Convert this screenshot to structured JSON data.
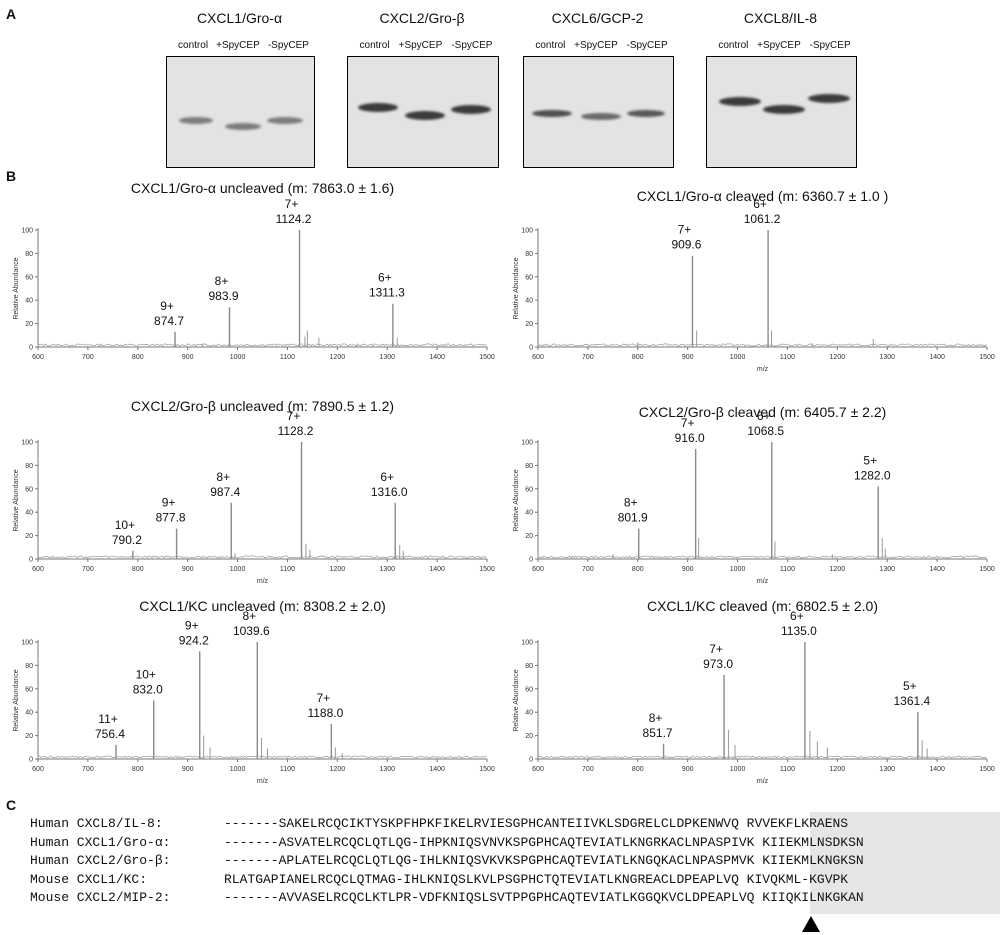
{
  "panels": {
    "a": "A",
    "b": "B",
    "c": "C"
  },
  "gels": [
    {
      "title": "CXCL1/Gro-α",
      "lanes": [
        "control",
        "+SpyCEP",
        "-SpyCEP"
      ]
    },
    {
      "title": "CXCL2/Gro-β",
      "lanes": [
        "control",
        "+SpyCEP",
        "-SpyCEP"
      ]
    },
    {
      "title": "CXCL6/GCP-2",
      "lanes": [
        "control",
        "+SpyCEP",
        "-SpyCEP"
      ]
    },
    {
      "title": "CXCL8/IL-8",
      "lanes": [
        "control",
        "+SpyCEP",
        "-SpyCEP"
      ]
    }
  ],
  "spectra_common": {
    "ylabel": "Relative Abundance",
    "xlabel": "m/z",
    "xticks": [
      600,
      700,
      800,
      900,
      1000,
      1100,
      1200,
      1300,
      1400,
      1500
    ],
    "yticks": [
      0,
      20,
      40,
      60,
      80,
      100
    ]
  },
  "chart_data": [
    {
      "type": "line",
      "title": "CXCL1/Gro-α uncleaved (m: 7863.0 ± 1.6)",
      "xlabel": "",
      "xlim": [
        600,
        1500
      ],
      "ylim": [
        0,
        100
      ],
      "peaks": [
        {
          "x": 874.7,
          "y": 13,
          "charge": "9+",
          "label": "874.7"
        },
        {
          "x": 983.9,
          "y": 34,
          "charge": "8+",
          "label": "983.9"
        },
        {
          "x": 1124.2,
          "y": 100,
          "charge": "7+",
          "label": "1124.2"
        },
        {
          "x": 1311.3,
          "y": 37,
          "charge": "6+",
          "label": "1311.3"
        }
      ],
      "minor": [
        {
          "x": 1135,
          "y": 9
        },
        {
          "x": 1140,
          "y": 14
        },
        {
          "x": 1163,
          "y": 8
        },
        {
          "x": 1320,
          "y": 8
        },
        {
          "x": 930,
          "y": 3
        },
        {
          "x": 1240,
          "y": 3
        }
      ]
    },
    {
      "type": "line",
      "title": "CXCL1/Gro-α cleaved (m: 6360.7 ± 1.0 )",
      "xlabel": "m/z",
      "xlim": [
        600,
        1500
      ],
      "ylim": [
        0,
        100
      ],
      "peaks": [
        {
          "x": 909.6,
          "y": 78,
          "charge": "7+",
          "label": "909.6"
        },
        {
          "x": 1061.2,
          "y": 100,
          "charge": "6+",
          "label": "1061.2"
        }
      ],
      "minor": [
        {
          "x": 918,
          "y": 14
        },
        {
          "x": 1068,
          "y": 14
        },
        {
          "x": 1272,
          "y": 7
        },
        {
          "x": 800,
          "y": 4
        },
        {
          "x": 1150,
          "y": 3
        }
      ]
    },
    {
      "type": "line",
      "title": "CXCL2/Gro-β uncleaved (m: 7890.5 ± 1.2)",
      "xlabel": "m/z",
      "xlim": [
        600,
        1500
      ],
      "ylim": [
        0,
        100
      ],
      "peaks": [
        {
          "x": 790.2,
          "y": 7,
          "charge": "10+",
          "label": "790.2"
        },
        {
          "x": 877.8,
          "y": 26,
          "charge": "9+",
          "label": "877.8"
        },
        {
          "x": 987.4,
          "y": 48,
          "charge": "8+",
          "label": "987.4"
        },
        {
          "x": 1128.2,
          "y": 100,
          "charge": "7+",
          "label": "1128.2"
        },
        {
          "x": 1316.0,
          "y": 48,
          "charge": "6+",
          "label": "1316.0"
        }
      ],
      "minor": [
        {
          "x": 1137,
          "y": 13
        },
        {
          "x": 1145,
          "y": 8
        },
        {
          "x": 1325,
          "y": 12
        },
        {
          "x": 1332,
          "y": 7
        },
        {
          "x": 995,
          "y": 5
        }
      ]
    },
    {
      "type": "line",
      "title": "CXCL2/Gro-β cleaved (m: 6405.7 ± 2.2)",
      "xlabel": "m/z",
      "xlim": [
        600,
        1500
      ],
      "ylim": [
        0,
        100
      ],
      "peaks": [
        {
          "x": 801.9,
          "y": 26,
          "charge": "8+",
          "label": "801.9"
        },
        {
          "x": 916.0,
          "y": 94,
          "charge": "7+",
          "label": "916.0"
        },
        {
          "x": 1068.5,
          "y": 100,
          "charge": "6+",
          "label": "1068.5"
        },
        {
          "x": 1282.0,
          "y": 62,
          "charge": "5+",
          "label": "1282.0"
        }
      ],
      "minor": [
        {
          "x": 922,
          "y": 18
        },
        {
          "x": 1075,
          "y": 15
        },
        {
          "x": 1290,
          "y": 18
        },
        {
          "x": 1296,
          "y": 9
        },
        {
          "x": 750,
          "y": 4
        },
        {
          "x": 1190,
          "y": 4
        }
      ]
    },
    {
      "type": "line",
      "title": "CXCL1/KC uncleaved (m: 8308.2 ± 2.0)",
      "xlabel": "m/z",
      "xlim": [
        600,
        1500
      ],
      "ylim": [
        0,
        100
      ],
      "peaks": [
        {
          "x": 756.4,
          "y": 12,
          "charge": "11+",
          "label": "756.4"
        },
        {
          "x": 832.0,
          "y": 50,
          "charge": "10+",
          "label": "832.0"
        },
        {
          "x": 924.2,
          "y": 92,
          "charge": "9+",
          "label": "924.2"
        },
        {
          "x": 1039.6,
          "y": 100,
          "charge": "8+",
          "label": "1039.6"
        },
        {
          "x": 1188.0,
          "y": 30,
          "charge": "7+",
          "label": "1188.0"
        }
      ],
      "minor": [
        {
          "x": 932,
          "y": 20
        },
        {
          "x": 945,
          "y": 10
        },
        {
          "x": 1048,
          "y": 18
        },
        {
          "x": 1060,
          "y": 9
        },
        {
          "x": 1196,
          "y": 10
        },
        {
          "x": 1210,
          "y": 5
        }
      ]
    },
    {
      "type": "line",
      "title": "CXCL1/KC cleaved (m: 6802.5 ± 2.0)",
      "xlabel": "m/z",
      "xlim": [
        600,
        1500
      ],
      "ylim": [
        0,
        100
      ],
      "peaks": [
        {
          "x": 851.7,
          "y": 13,
          "charge": "8+",
          "label": "851.7"
        },
        {
          "x": 973.0,
          "y": 72,
          "charge": "7+",
          "label": "973.0"
        },
        {
          "x": 1135.0,
          "y": 100,
          "charge": "6+",
          "label": "1135.0"
        },
        {
          "x": 1361.4,
          "y": 40,
          "charge": "5+",
          "label": "1361.4"
        }
      ],
      "minor": [
        {
          "x": 982,
          "y": 25
        },
        {
          "x": 995,
          "y": 12
        },
        {
          "x": 1145,
          "y": 24
        },
        {
          "x": 1160,
          "y": 15
        },
        {
          "x": 1180,
          "y": 10
        },
        {
          "x": 1370,
          "y": 16
        },
        {
          "x": 1380,
          "y": 9
        }
      ]
    }
  ],
  "sequences": [
    {
      "label": "Human CXCL8/IL-8:",
      "seq": "-------SAKELRCQCIKTYSKPFHPKFIKELRVIESGPHCANTEIIVKLSDGRELCLDPKENWVQ RVVEKFLKRAENS"
    },
    {
      "label": "Human CXCL1/Gro-α:",
      "seq": "-------ASVATELRCQCLQTLQG-IHPKNIQSVNVKSPGPHCAQTEVIATLKNGRKACLNPASPIVK KIIEKMLNSDKSN"
    },
    {
      "label": "Human CXCL2/Gro-β:",
      "seq": "-------APLATELRCQCLQTLQG-IHLKNIQSVKVKSPGPHCAQTEVIATLKNGQKACLNPASPMVK KIIEKMLKNGKSN"
    },
    {
      "label": "Mouse CXCL1/KC:",
      "seq": "RLATGAPIANELRCQCLQTMAG-IHLKNIQSLKVLPSGPHCTQTEVIATLKNGREACLDPEAPLVQ KIVQKML-KGVPK"
    },
    {
      "label": "Mouse CXCL2/MIP-2:",
      "seq": "-------AVVASELRCQCLKTLPR-VDFKNIQSLSVTPPGPHCAQTEVIATLKGGQKVCLDPEAPLVQ KIIQKILNKGKAN"
    }
  ]
}
